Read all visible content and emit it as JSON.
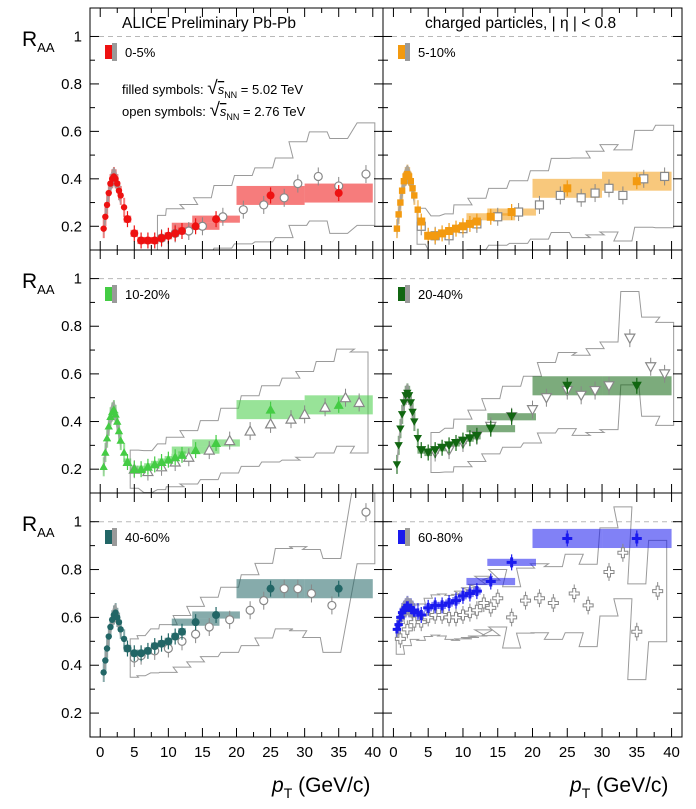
{
  "header": {
    "left": "ALICE Preliminary Pb-Pb",
    "right": "charged particles, | η | < 0.8"
  },
  "legend_note": {
    "filled": "filled symbols:",
    "open": "open symbols:",
    "energy_filled": "= 5.02 TeV",
    "energy_open": "= 2.76 TeV",
    "sqrt_symbol": "√",
    "s_label": "s",
    "nn_sub": "NN"
  },
  "axes": {
    "ylabel_main": "R",
    "ylabel_sub": "AA",
    "xlabel_main": "p",
    "xlabel_sub": "T",
    "xlabel_unit": "(GeV/c)",
    "yticks": [
      "0.2",
      "0.4",
      "0.6",
      "0.8",
      "1"
    ],
    "xticks": [
      "0",
      "5",
      "10",
      "15",
      "20",
      "25",
      "30",
      "35",
      "40"
    ]
  },
  "chart_data": [
    {
      "type": "scatter",
      "centrality": "0-5%",
      "color": "#ee1111",
      "xlim": [
        -1.5,
        41.5
      ],
      "ylim": [
        0.1,
        1.12
      ],
      "log": false,
      "grid": false,
      "reference_line": 1,
      "x": [
        0.5,
        0.75,
        1.0,
        1.25,
        1.5,
        1.75,
        2.0,
        2.25,
        2.5,
        2.75,
        3.0,
        3.5,
        4.0,
        5.0,
        6.0,
        7.0,
        8.0,
        9.0,
        10.0,
        11.0,
        12.0,
        14.0,
        17.0,
        25.0,
        35.0
      ],
      "y": [
        0.19,
        0.24,
        0.29,
        0.34,
        0.38,
        0.4,
        0.41,
        0.4,
        0.38,
        0.35,
        0.33,
        0.28,
        0.23,
        0.17,
        0.14,
        0.14,
        0.14,
        0.15,
        0.16,
        0.17,
        0.18,
        0.2,
        0.23,
        0.33,
        0.34
      ],
      "open_x": [
        9.0,
        11.0,
        13.0,
        15.0,
        18.0,
        21.0,
        24.0,
        27.0,
        29.0,
        32.0,
        35.0,
        39.0
      ],
      "open_y": [
        0.15,
        0.17,
        0.18,
        0.2,
        0.24,
        0.27,
        0.29,
        0.32,
        0.38,
        0.41,
        0.37,
        0.42
      ]
    },
    {
      "type": "scatter",
      "centrality": "5-10%",
      "color": "#f39a10",
      "xlim": [
        -1.5,
        41.5
      ],
      "ylim": [
        0.1,
        1.12
      ],
      "log": false,
      "grid": false,
      "reference_line": 1,
      "x": [
        0.5,
        0.75,
        1.0,
        1.25,
        1.5,
        1.75,
        2.0,
        2.25,
        2.5,
        2.75,
        3.0,
        3.5,
        4.0,
        5.0,
        6.0,
        7.0,
        8.0,
        9.0,
        10.0,
        11.0,
        12.0,
        14.0,
        17.0,
        25.0,
        35.0
      ],
      "y": [
        0.19,
        0.25,
        0.3,
        0.35,
        0.39,
        0.41,
        0.42,
        0.41,
        0.39,
        0.36,
        0.33,
        0.27,
        0.22,
        0.16,
        0.16,
        0.17,
        0.18,
        0.19,
        0.2,
        0.21,
        0.22,
        0.24,
        0.26,
        0.36,
        0.39
      ],
      "open_x": [
        4.0,
        6.0,
        8.0,
        10.0,
        12.0,
        15.0,
        18.0,
        21.0,
        24.0,
        27.0,
        29.0,
        31.0,
        33.0,
        36.0,
        39.0
      ],
      "open_y": [
        0.2,
        0.16,
        0.16,
        0.19,
        0.21,
        0.24,
        0.26,
        0.29,
        0.33,
        0.32,
        0.34,
        0.36,
        0.33,
        0.4,
        0.41
      ]
    },
    {
      "type": "scatter",
      "centrality": "10-20%",
      "color": "#44cc44",
      "xlim": [
        -1.5,
        41.5
      ],
      "ylim": [
        0.1,
        1.12
      ],
      "log": false,
      "grid": false,
      "reference_line": 1,
      "x": [
        0.5,
        0.75,
        1.0,
        1.25,
        1.5,
        1.75,
        2.0,
        2.25,
        2.5,
        2.75,
        3.0,
        3.5,
        4.0,
        5.0,
        6.0,
        7.0,
        8.0,
        9.0,
        10.0,
        11.0,
        12.0,
        14.0,
        17.0,
        25.0,
        35.0
      ],
      "y": [
        0.21,
        0.27,
        0.33,
        0.38,
        0.42,
        0.44,
        0.45,
        0.43,
        0.4,
        0.36,
        0.32,
        0.27,
        0.23,
        0.2,
        0.2,
        0.21,
        0.22,
        0.23,
        0.24,
        0.25,
        0.26,
        0.28,
        0.31,
        0.45,
        0.47
      ],
      "open_x": [
        5.0,
        7.0,
        9.0,
        11.0,
        13.0,
        16.0,
        19.0,
        22.0,
        25.0,
        28.0,
        30.0,
        33.0,
        36.0,
        38.0
      ],
      "open_y": [
        0.2,
        0.19,
        0.21,
        0.23,
        0.25,
        0.28,
        0.32,
        0.36,
        0.39,
        0.41,
        0.43,
        0.46,
        0.5,
        0.48
      ]
    },
    {
      "type": "scatter",
      "centrality": "20-40%",
      "color": "#116611",
      "xlim": [
        -1.5,
        41.5
      ],
      "ylim": [
        0.1,
        1.12
      ],
      "log": false,
      "grid": false,
      "reference_line": 1,
      "x": [
        0.5,
        0.75,
        1.0,
        1.25,
        1.5,
        1.75,
        2.0,
        2.25,
        2.5,
        2.75,
        3.0,
        3.5,
        4.0,
        5.0,
        6.0,
        7.0,
        8.0,
        9.0,
        10.0,
        11.0,
        12.0,
        14.0,
        17.0,
        25.0,
        35.0
      ],
      "y": [
        0.22,
        0.3,
        0.37,
        0.43,
        0.48,
        0.51,
        0.52,
        0.51,
        0.48,
        0.44,
        0.4,
        0.33,
        0.28,
        0.27,
        0.28,
        0.29,
        0.3,
        0.31,
        0.32,
        0.33,
        0.34,
        0.37,
        0.42,
        0.55,
        0.55
      ],
      "open_x": [
        6.0,
        8.0,
        10.0,
        12.0,
        14.0,
        17.0,
        20.0,
        22.0,
        25.0,
        27.0,
        29.0,
        31.0,
        34.0,
        37.0,
        39.0
      ],
      "open_y": [
        0.27,
        0.28,
        0.31,
        0.34,
        0.38,
        0.42,
        0.45,
        0.5,
        0.53,
        0.51,
        0.53,
        0.55,
        0.75,
        0.63,
        0.6
      ]
    },
    {
      "type": "scatter",
      "centrality": "40-60%",
      "color": "#226666",
      "xlim": [
        -1.5,
        41.5
      ],
      "ylim": [
        0.1,
        1.12
      ],
      "log": false,
      "grid": false,
      "reference_line": 1,
      "x": [
        0.5,
        0.75,
        1.0,
        1.25,
        1.5,
        1.75,
        2.0,
        2.25,
        2.5,
        2.75,
        3.0,
        3.5,
        4.0,
        5.0,
        6.0,
        7.0,
        8.0,
        9.0,
        10.0,
        11.0,
        12.0,
        14.0,
        17.0,
        25.0,
        35.0
      ],
      "y": [
        0.37,
        0.42,
        0.47,
        0.52,
        0.56,
        0.59,
        0.61,
        0.62,
        0.6,
        0.58,
        0.55,
        0.51,
        0.47,
        0.45,
        0.45,
        0.46,
        0.48,
        0.49,
        0.5,
        0.52,
        0.54,
        0.58,
        0.61,
        0.72,
        0.72
      ],
      "open_x": [
        5.0,
        6.0,
        8.0,
        10.0,
        12.0,
        14.0,
        16.0,
        19.0,
        22.0,
        24.0,
        27.0,
        29.0,
        31.0,
        34.0,
        39.0
      ],
      "open_y": [
        0.43,
        0.44,
        0.46,
        0.47,
        0.5,
        0.53,
        0.56,
        0.59,
        0.63,
        0.67,
        0.72,
        0.72,
        0.7,
        0.65,
        1.04
      ]
    },
    {
      "type": "scatter",
      "centrality": "60-80%",
      "color": "#1a1aee",
      "xlim": [
        -1.5,
        41.5
      ],
      "ylim": [
        0.1,
        1.12
      ],
      "log": false,
      "grid": false,
      "reference_line": 1,
      "x": [
        0.5,
        0.75,
        1.0,
        1.25,
        1.5,
        1.75,
        2.0,
        2.25,
        2.5,
        2.75,
        3.0,
        3.5,
        4.0,
        5.0,
        6.0,
        7.0,
        8.0,
        9.0,
        10.0,
        11.0,
        12.0,
        14.0,
        17.0,
        25.0,
        35.0
      ],
      "y": [
        0.55,
        0.57,
        0.6,
        0.62,
        0.63,
        0.64,
        0.65,
        0.64,
        0.64,
        0.63,
        0.62,
        0.62,
        0.61,
        0.64,
        0.65,
        0.65,
        0.66,
        0.67,
        0.69,
        0.7,
        0.71,
        0.75,
        0.83,
        0.93,
        0.93
      ],
      "open_x": [
        1.0,
        2.0,
        3.0,
        4.0,
        5.0,
        6.0,
        7.0,
        8.0,
        9.0,
        10.0,
        11.0,
        12.0,
        13.0,
        14.0,
        15.0,
        17.0,
        19.0,
        21.0,
        23.0,
        26.0,
        28.0,
        31.0,
        33.0,
        35.0,
        38.0
      ],
      "open_y": [
        0.51,
        0.55,
        0.58,
        0.58,
        0.6,
        0.61,
        0.61,
        0.6,
        0.6,
        0.61,
        0.62,
        0.63,
        0.66,
        0.64,
        0.68,
        0.6,
        0.67,
        0.68,
        0.66,
        0.7,
        0.65,
        0.79,
        0.87,
        0.54,
        0.71
      ]
    }
  ]
}
